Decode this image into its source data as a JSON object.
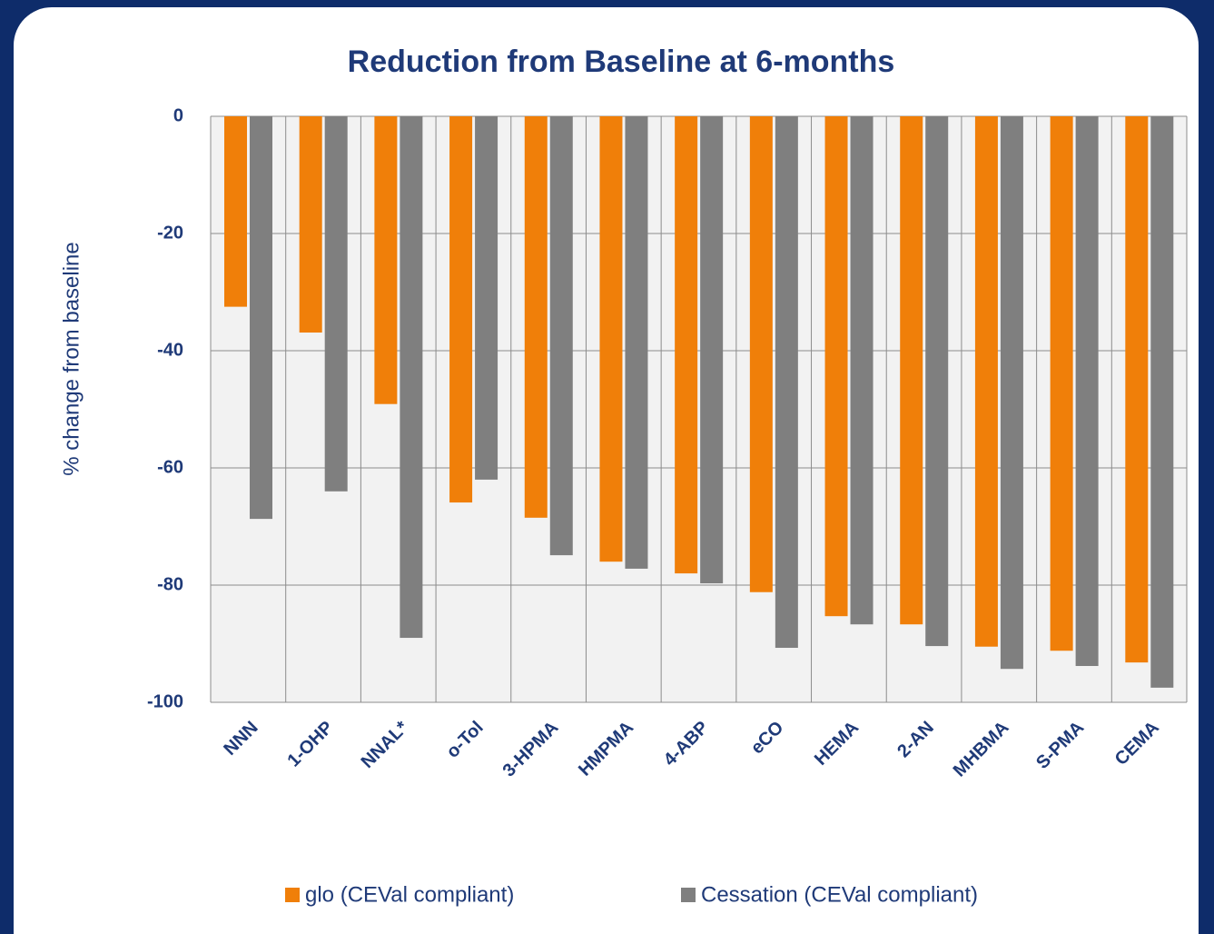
{
  "chart_data": {
    "type": "bar",
    "title": "Reduction from Baseline at 6-months",
    "y_label": "% change from baseline",
    "categories": [
      "NNN",
      "1-OHP",
      "NNAL*",
      "o-Tol",
      "3-HPMA",
      "HMPMA",
      "4-ABP",
      "eCO",
      "HEMA",
      "2-AN",
      "MHBMA",
      "S-PMA",
      "CEMA"
    ],
    "series": [
      {
        "name": "glo (CEVal compliant)",
        "color": "#f07f09",
        "values": [
          -32.5,
          -36.9,
          -49.1,
          -65.9,
          -68.5,
          -76.0,
          -78.0,
          -81.2,
          -85.3,
          -86.7,
          -90.5,
          -91.2,
          -93.2
        ]
      },
      {
        "name": "Cessation (CEVal compliant)",
        "color": "#7f7f7f",
        "values": [
          -68.7,
          -64.0,
          -89.0,
          -62.0,
          -74.9,
          -77.2,
          -79.7,
          -90.7,
          -86.7,
          -90.4,
          -94.3,
          -93.8,
          -97.5
        ]
      }
    ],
    "ylim": [
      -100,
      0
    ],
    "yticks": [
      0,
      -20,
      -40,
      -60,
      -80,
      -100
    ],
    "grid": true,
    "legend": "bottom"
  }
}
